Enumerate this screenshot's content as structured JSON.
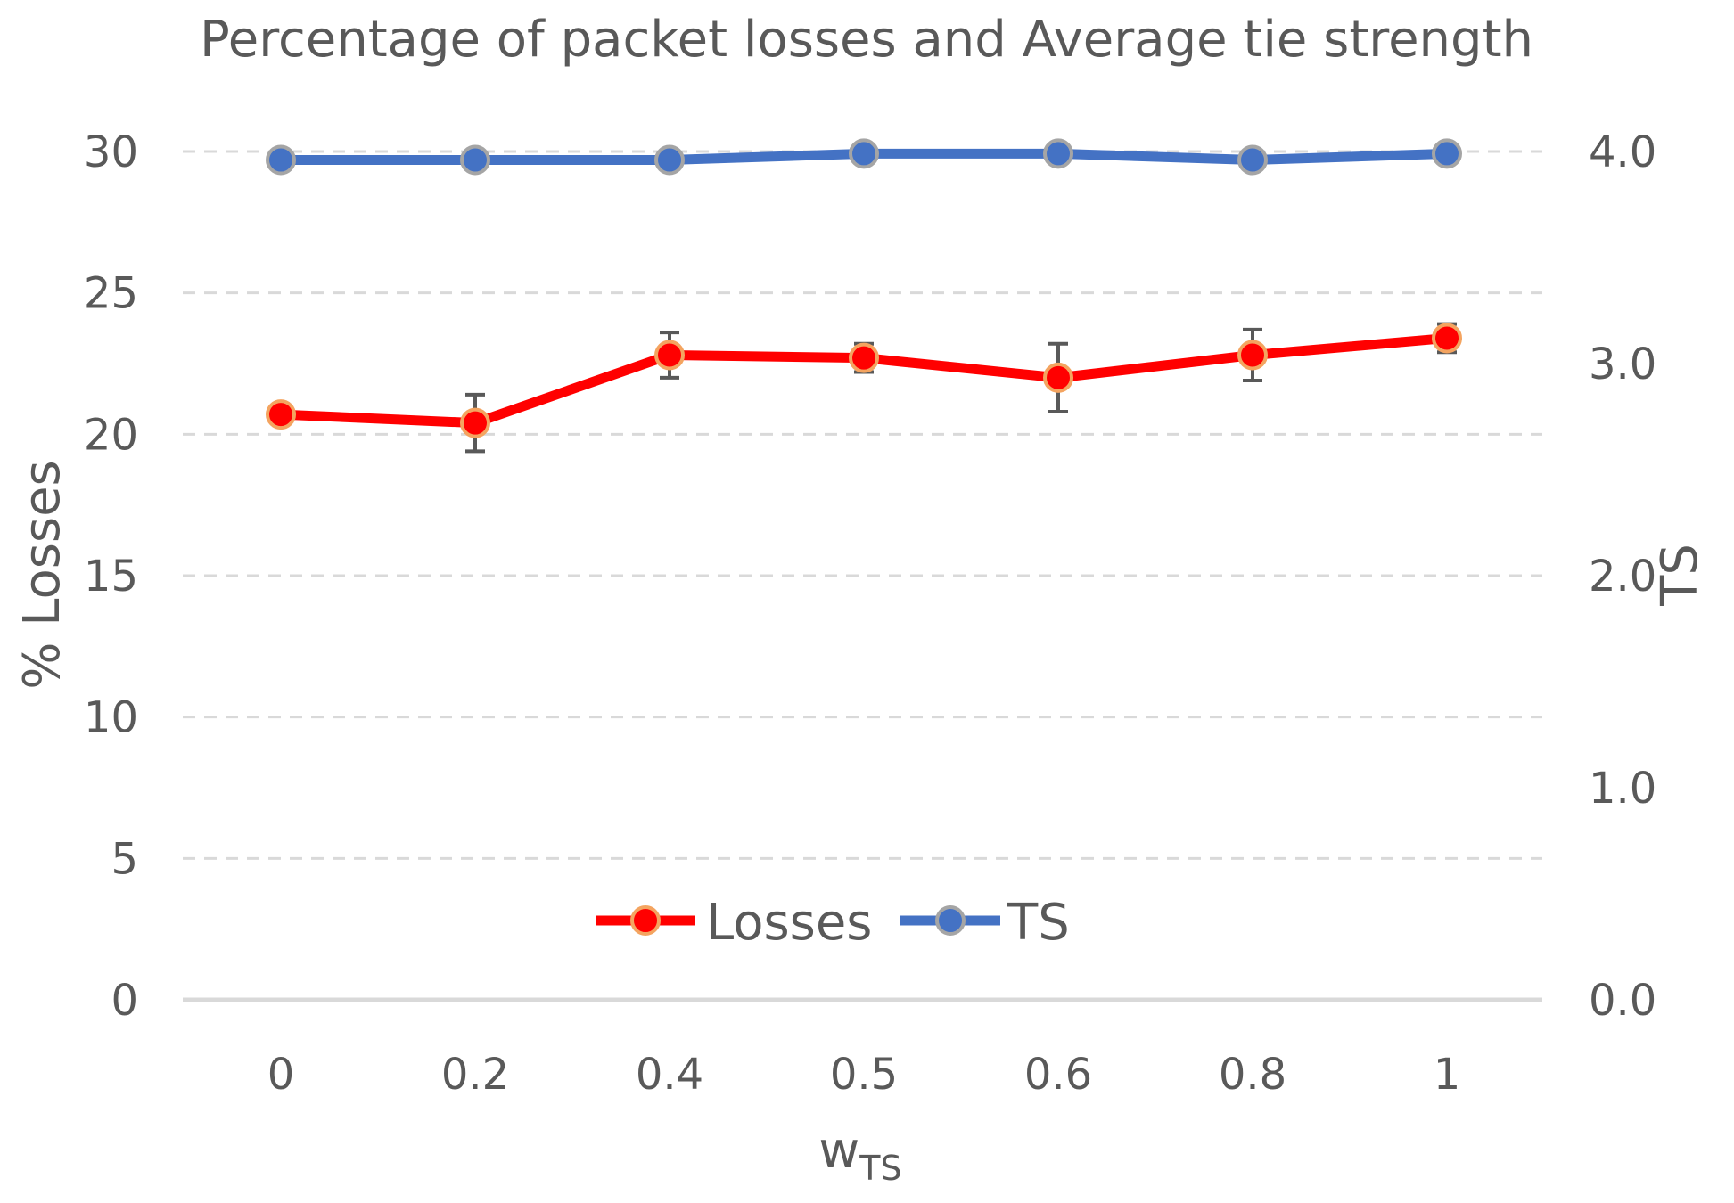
{
  "chart_data": {
    "type": "line",
    "title": "Percentage of packet losses and Average tie strength",
    "categories": [
      "0",
      "0.2",
      "0.4",
      "0.5",
      "0.6",
      "0.8",
      "1"
    ],
    "xlabel": "w",
    "xlabel_subscript": "TS",
    "ylabel": "% Losses",
    "y2label": "TS",
    "ylim": [
      0,
      30
    ],
    "y2lim": [
      0,
      4.0
    ],
    "yticks": [
      "0",
      "5",
      "10",
      "15",
      "20",
      "25",
      "30"
    ],
    "y2ticks": [
      "0.0",
      "1.0",
      "2.0",
      "3.0",
      "4.0"
    ],
    "grid": true,
    "legend_position": "bottom-center",
    "series": [
      {
        "name": "Losses",
        "axis": "left",
        "color": "#ff0000",
        "marker_edge": "#f4a460",
        "values": [
          20.7,
          20.4,
          22.8,
          22.7,
          22.0,
          22.8,
          23.4
        ],
        "error": [
          0.0,
          1.0,
          0.8,
          0.5,
          1.2,
          0.9,
          0.5
        ]
      },
      {
        "name": "TS",
        "axis": "right",
        "color": "#4472c4",
        "marker_edge": "#a5a5a5",
        "values": [
          3.96,
          3.96,
          3.96,
          3.99,
          3.99,
          3.96,
          3.99
        ]
      }
    ]
  }
}
